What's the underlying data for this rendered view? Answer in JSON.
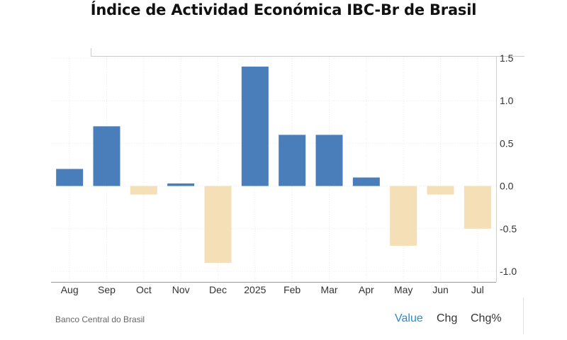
{
  "title": "Índice de Actividad Económica IBC-Br de Brasil",
  "source": "Banco Central do Brasil",
  "toggles": {
    "value": "Value",
    "chg": "Chg",
    "chg_pct": "Chg%"
  },
  "colors": {
    "positive": "#4a7ebb",
    "negative": "#f4dfb6",
    "active_toggle": "#2e8bc9"
  },
  "chart_data": {
    "type": "bar",
    "categories": [
      "Aug",
      "Sep",
      "Oct",
      "Nov",
      "Dec",
      "2025",
      "Feb",
      "Mar",
      "Apr",
      "May",
      "Jun",
      "Jul"
    ],
    "values": [
      0.2,
      0.7,
      -0.1,
      0.03,
      -0.9,
      1.4,
      0.6,
      0.6,
      0.1,
      -0.7,
      -0.1,
      -0.5
    ],
    "title": "Índice de Actividad Económica IBC-Br de Brasil",
    "xlabel": "",
    "ylabel": "",
    "ylim": [
      -1.0,
      1.5
    ],
    "yticks": [
      "1.5",
      "1.0",
      "0.5",
      "0.0",
      "-0.5",
      "-1.0"
    ],
    "grid": true,
    "y_axis_position": "right"
  }
}
